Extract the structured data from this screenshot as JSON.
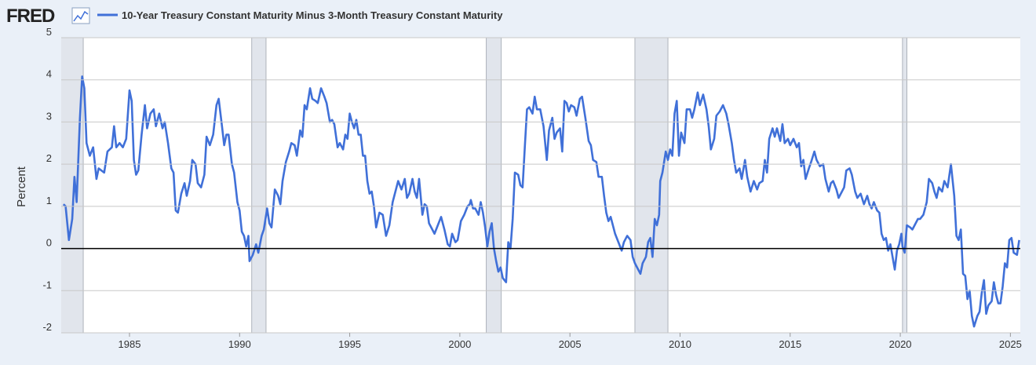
{
  "chart_data": {
    "type": "line",
    "logo": "FRED",
    "y_label": "Percent",
    "xlim": [
      1981.9,
      2025.45
    ],
    "xticks": [
      1985,
      1990,
      1995,
      2000,
      2005,
      2010,
      2015,
      2020,
      2025
    ],
    "ylim": [
      -2,
      5
    ],
    "yticks": [
      -2,
      -1,
      0,
      1,
      2,
      3,
      4,
      5
    ],
    "grid": true,
    "recessions": [
      [
        1981.5,
        1982.9
      ],
      [
        1990.55,
        1991.2
      ],
      [
        2001.2,
        2001.88
      ],
      [
        2007.95,
        2009.45
      ],
      [
        2020.1,
        2020.3
      ]
    ],
    "x": [
      1982.0,
      1982.1,
      1982.25,
      1982.4,
      1982.5,
      1982.6,
      1982.75,
      1982.85,
      1982.95,
      1983.05,
      1983.2,
      1983.35,
      1983.5,
      1983.6,
      1983.85,
      1984.0,
      1984.2,
      1984.3,
      1984.4,
      1984.55,
      1984.7,
      1984.85,
      1985.0,
      1985.1,
      1985.2,
      1985.3,
      1985.4,
      1985.55,
      1985.7,
      1985.8,
      1985.95,
      1986.1,
      1986.2,
      1986.35,
      1986.5,
      1986.6,
      1986.75,
      1986.9,
      1987.0,
      1987.1,
      1987.2,
      1987.35,
      1987.5,
      1987.6,
      1987.75,
      1987.85,
      1988.0,
      1988.1,
      1988.25,
      1988.4,
      1988.5,
      1988.65,
      1988.8,
      1988.95,
      1989.05,
      1989.2,
      1989.3,
      1989.4,
      1989.5,
      1989.65,
      1989.75,
      1989.9,
      1990.0,
      1990.1,
      1990.2,
      1990.3,
      1990.4,
      1990.45,
      1990.6,
      1990.75,
      1990.85,
      1991.0,
      1991.1,
      1991.25,
      1991.35,
      1991.45,
      1991.6,
      1991.75,
      1991.85,
      1991.95,
      1992.1,
      1992.25,
      1992.35,
      1992.5,
      1992.6,
      1992.75,
      1992.85,
      1992.95,
      1993.05,
      1993.2,
      1993.3,
      1993.45,
      1993.55,
      1993.7,
      1993.85,
      1993.95,
      1994.1,
      1994.2,
      1994.3,
      1994.45,
      1994.55,
      1994.7,
      1994.8,
      1994.9,
      1995.0,
      1995.1,
      1995.2,
      1995.3,
      1995.4,
      1995.5,
      1995.6,
      1995.7,
      1995.8,
      1995.9,
      1996.0,
      1996.1,
      1996.2,
      1996.35,
      1996.5,
      1996.65,
      1996.8,
      1996.95,
      1997.05,
      1997.2,
      1997.35,
      1997.5,
      1997.6,
      1997.7,
      1997.85,
      1997.95,
      1998.05,
      1998.15,
      1998.3,
      1998.4,
      1998.5,
      1998.6,
      1998.75,
      1998.85,
      1999.0,
      1999.15,
      1999.3,
      1999.45,
      1999.55,
      1999.65,
      1999.8,
      1999.9,
      2000.05,
      2000.2,
      2000.35,
      2000.45,
      2000.5,
      2000.6,
      2000.7,
      2000.85,
      2000.95,
      2001.05,
      2001.15,
      2001.25,
      2001.35,
      2001.45,
      2001.55,
      2001.65,
      2001.75,
      2001.85,
      2001.95,
      2002.1,
      2002.2,
      2002.3,
      2002.4,
      2002.5,
      2002.65,
      2002.75,
      2002.85,
      2002.95,
      2003.05,
      2003.15,
      2003.3,
      2003.4,
      2003.5,
      2003.65,
      2003.8,
      2003.95,
      2004.05,
      2004.2,
      2004.3,
      2004.4,
      2004.55,
      2004.65,
      2004.75,
      2004.85,
      2004.95,
      2005.05,
      2005.2,
      2005.3,
      2005.45,
      2005.55,
      2005.7,
      2005.85,
      2005.95,
      2006.05,
      2006.2,
      2006.3,
      2006.45,
      2006.55,
      2006.65,
      2006.75,
      2006.85,
      2006.95,
      2007.05,
      2007.2,
      2007.35,
      2007.45,
      2007.6,
      2007.75,
      2007.85,
      2007.95,
      2008.05,
      2008.2,
      2008.3,
      2008.45,
      2008.55,
      2008.65,
      2008.75,
      2008.85,
      2008.95,
      2009.05,
      2009.1,
      2009.2,
      2009.35,
      2009.45,
      2009.55,
      2009.65,
      2009.75,
      2009.85,
      2009.95,
      2010.05,
      2010.2,
      2010.3,
      2010.45,
      2010.55,
      2010.65,
      2010.8,
      2010.9,
      2011.05,
      2011.2,
      2011.3,
      2011.4,
      2011.55,
      2011.65,
      2011.8,
      2011.95,
      2012.1,
      2012.2,
      2012.35,
      2012.45,
      2012.55,
      2012.7,
      2012.8,
      2012.95,
      2013.05,
      2013.2,
      2013.35,
      2013.5,
      2013.6,
      2013.75,
      2013.85,
      2013.95,
      2014.05,
      2014.2,
      2014.3,
      2014.4,
      2014.55,
      2014.65,
      2014.75,
      2014.9,
      2015.0,
      2015.15,
      2015.3,
      2015.4,
      2015.5,
      2015.6,
      2015.7,
      2015.85,
      2015.95,
      2016.1,
      2016.2,
      2016.35,
      2016.5,
      2016.6,
      2016.75,
      2016.85,
      2016.95,
      2017.1,
      2017.2,
      2017.3,
      2017.45,
      2017.55,
      2017.7,
      2017.8,
      2017.95,
      2018.05,
      2018.2,
      2018.35,
      2018.5,
      2018.6,
      2018.7,
      2018.8,
      2018.95,
      2019.05,
      2019.15,
      2019.25,
      2019.35,
      2019.45,
      2019.55,
      2019.65,
      2019.75,
      2019.85,
      2019.95,
      2020.05,
      2020.1,
      2020.2,
      2020.3,
      2020.45,
      2020.55,
      2020.7,
      2020.8,
      2020.9,
      2021.05,
      2021.2,
      2021.3,
      2021.45,
      2021.55,
      2021.65,
      2021.75,
      2021.9,
      2022.0,
      2022.15,
      2022.3,
      2022.45,
      2022.55,
      2022.65,
      2022.75,
      2022.85,
      2022.95,
      2023.05,
      2023.15,
      2023.25,
      2023.35,
      2023.5,
      2023.6,
      2023.7,
      2023.8,
      2023.9,
      2024.0,
      2024.15,
      2024.25,
      2024.35,
      2024.45,
      2024.55,
      2024.65,
      2024.75,
      2024.85,
      2024.95,
      2025.05,
      2025.15,
      2025.3,
      2025.4
    ],
    "series": [
      {
        "name": "10-Year Treasury Constant Maturity Minus 3-Month Treasury Constant Maturity",
        "color": "#4070d8",
        "values": [
          1.05,
          1.0,
          0.2,
          0.7,
          1.7,
          1.1,
          3.1,
          4.08,
          3.8,
          2.5,
          2.2,
          2.4,
          1.65,
          1.9,
          1.8,
          2.3,
          2.4,
          2.9,
          2.4,
          2.5,
          2.4,
          2.6,
          3.75,
          3.5,
          2.1,
          1.75,
          1.85,
          2.7,
          3.4,
          2.85,
          3.2,
          3.3,
          2.9,
          3.2,
          2.85,
          3.0,
          2.5,
          1.9,
          1.8,
          0.9,
          0.85,
          1.3,
          1.55,
          1.25,
          1.6,
          2.1,
          2.0,
          1.55,
          1.45,
          1.75,
          2.65,
          2.45,
          2.7,
          3.4,
          3.55,
          2.9,
          2.45,
          2.7,
          2.7,
          2.0,
          1.8,
          1.1,
          0.9,
          0.4,
          0.3,
          0.05,
          0.3,
          -0.3,
          -0.15,
          0.1,
          -0.1,
          0.3,
          0.45,
          0.95,
          0.6,
          0.5,
          1.4,
          1.25,
          1.05,
          1.6,
          2.05,
          2.3,
          2.5,
          2.45,
          2.2,
          2.8,
          2.65,
          3.4,
          3.3,
          3.8,
          3.55,
          3.5,
          3.45,
          3.8,
          3.6,
          3.45,
          3.0,
          3.05,
          2.95,
          2.4,
          2.5,
          2.35,
          2.7,
          2.6,
          3.2,
          3.0,
          2.85,
          3.05,
          2.7,
          2.7,
          2.2,
          2.2,
          1.6,
          1.3,
          1.35,
          1.0,
          0.5,
          0.85,
          0.8,
          0.3,
          0.55,
          1.1,
          1.3,
          1.6,
          1.4,
          1.65,
          1.2,
          1.3,
          1.65,
          1.35,
          1.2,
          1.65,
          0.8,
          1.05,
          1.0,
          0.6,
          0.45,
          0.35,
          0.55,
          0.75,
          0.45,
          0.1,
          0.05,
          0.35,
          0.15,
          0.2,
          0.65,
          0.8,
          1.0,
          1.05,
          1.15,
          0.95,
          0.95,
          0.8,
          1.1,
          0.85,
          0.5,
          0.05,
          0.4,
          0.6,
          0.0,
          -0.3,
          -0.55,
          -0.45,
          -0.7,
          -0.8,
          0.15,
          0.0,
          0.7,
          1.8,
          1.75,
          1.5,
          1.45,
          2.4,
          3.3,
          3.35,
          3.2,
          3.6,
          3.3,
          3.3,
          2.9,
          2.1,
          2.8,
          3.1,
          2.6,
          2.75,
          2.85,
          2.3,
          3.5,
          3.45,
          3.25,
          3.4,
          3.35,
          3.15,
          3.55,
          3.6,
          3.1,
          2.55,
          2.45,
          2.1,
          2.05,
          1.7,
          1.7,
          1.25,
          0.85,
          0.65,
          0.75,
          0.55,
          0.35,
          0.15,
          -0.05,
          0.15,
          0.3,
          0.2,
          -0.2,
          -0.35,
          -0.45,
          -0.6,
          -0.35,
          -0.2,
          0.15,
          0.25,
          -0.2,
          0.7,
          0.55,
          0.8,
          1.6,
          1.8,
          2.3,
          2.1,
          2.35,
          2.2,
          3.2,
          3.5,
          2.2,
          2.75,
          2.5,
          3.3,
          3.3,
          3.1,
          3.3,
          3.7,
          3.4,
          3.65,
          3.3,
          2.9,
          2.35,
          2.6,
          3.15,
          3.25,
          3.4,
          3.2,
          2.95,
          2.5,
          2.1,
          1.8,
          1.9,
          1.65,
          2.1,
          1.7,
          1.35,
          1.6,
          1.4,
          1.55,
          1.6,
          2.1,
          1.8,
          2.6,
          2.85,
          2.65,
          2.85,
          2.55,
          2.95,
          2.5,
          2.6,
          2.45,
          2.6,
          2.4,
          2.5,
          1.95,
          2.1,
          1.65,
          1.9,
          2.05,
          2.3,
          2.1,
          1.95,
          2.0,
          1.65,
          1.35,
          1.55,
          1.6,
          1.4,
          1.2,
          1.3,
          1.45,
          1.85,
          1.9,
          1.75,
          1.35,
          1.2,
          1.3,
          1.05,
          1.25,
          1.05,
          0.95,
          1.1,
          0.9,
          0.85,
          0.35,
          0.2,
          0.25,
          -0.05,
          0.1,
          -0.2,
          -0.5,
          -0.05,
          0.1,
          0.35,
          0.05,
          -0.1,
          0.55,
          0.5,
          0.45,
          0.6,
          0.7,
          0.7,
          0.8,
          1.1,
          1.65,
          1.55,
          1.35,
          1.2,
          1.45,
          1.35,
          1.6,
          1.45,
          2.0,
          1.25,
          0.3,
          0.2,
          0.45,
          -0.6,
          -0.65,
          -1.2,
          -1.0,
          -1.6,
          -1.85,
          -1.6,
          -1.5,
          -1.05,
          -0.75,
          -1.55,
          -1.35,
          -1.25,
          -0.8,
          -1.1,
          -1.3,
          -1.3,
          -0.9,
          -0.35,
          -0.45,
          0.2,
          0.25,
          -0.1,
          -0.15,
          0.2
        ]
      }
    ]
  }
}
